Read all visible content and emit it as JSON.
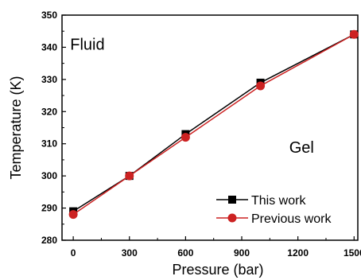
{
  "chart_data": {
    "type": "line",
    "title": "",
    "xlabel": "Pressure (bar)",
    "ylabel": "Temperature (K)",
    "xlim": [
      -60,
      1520
    ],
    "ylim": [
      280,
      350
    ],
    "x_ticks": [
      0,
      300,
      600,
      900,
      1200,
      1500
    ],
    "y_ticks": [
      280,
      290,
      300,
      310,
      320,
      330,
      340,
      350
    ],
    "grid": false,
    "legend_position": "bottom-right",
    "annotations": [
      {
        "text": "Fluid",
        "x": 60,
        "y": 341
      },
      {
        "text": "Gel",
        "x": 1230,
        "y": 309
      }
    ],
    "series": [
      {
        "name": "This work",
        "color": "#000000",
        "marker": "square",
        "x": [
          0,
          300,
          600,
          1000,
          1500
        ],
        "y": [
          289,
          300,
          313,
          329,
          344
        ]
      },
      {
        "name": "Previous work",
        "color": "#cc2222",
        "marker": "circle",
        "x": [
          0,
          300,
          600,
          1000,
          1500
        ],
        "y": [
          288,
          300,
          312,
          328,
          344
        ]
      }
    ]
  }
}
